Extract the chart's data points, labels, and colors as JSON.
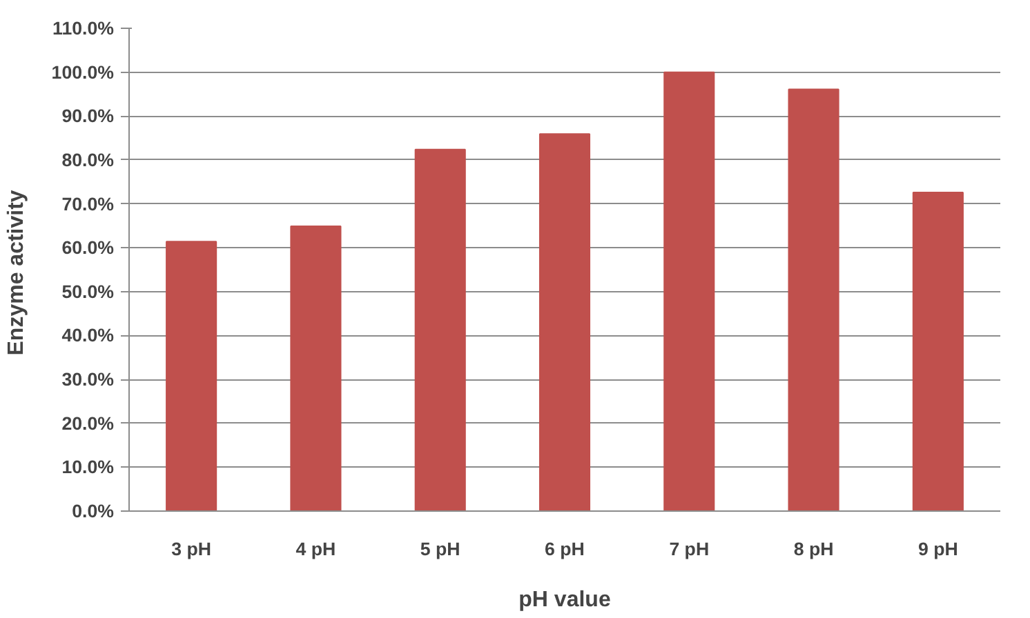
{
  "chart_data": {
    "type": "bar",
    "xlabel": "pH value",
    "ylabel": "Enzyme  activity",
    "categories": [
      "3 pH",
      "4 pH",
      "5 pH",
      "6 pH",
      "7 pH",
      "8 pH",
      "9 pH"
    ],
    "values": [
      61.4,
      64.9,
      82.4,
      85.9,
      100,
      96.1,
      72.6
    ],
    "color": "#c0504d",
    "ylim": [
      0,
      110
    ],
    "yticks": [
      {
        "value": 0,
        "label": "0.0%"
      },
      {
        "value": 10,
        "label": "10.0%"
      },
      {
        "value": 20,
        "label": "20.0%"
      },
      {
        "value": 30,
        "label": "30.0%"
      },
      {
        "value": 40,
        "label": "40.0%"
      },
      {
        "value": 50,
        "label": "50.0%"
      },
      {
        "value": 60,
        "label": "60.0%"
      },
      {
        "value": 70,
        "label": "70.0%"
      },
      {
        "value": 80,
        "label": "80.0%"
      },
      {
        "value": 90,
        "label": "90.0%"
      },
      {
        "value": 100,
        "label": "100.0%"
      },
      {
        "value": 110,
        "label": "110.0%"
      }
    ],
    "grid": "y"
  }
}
